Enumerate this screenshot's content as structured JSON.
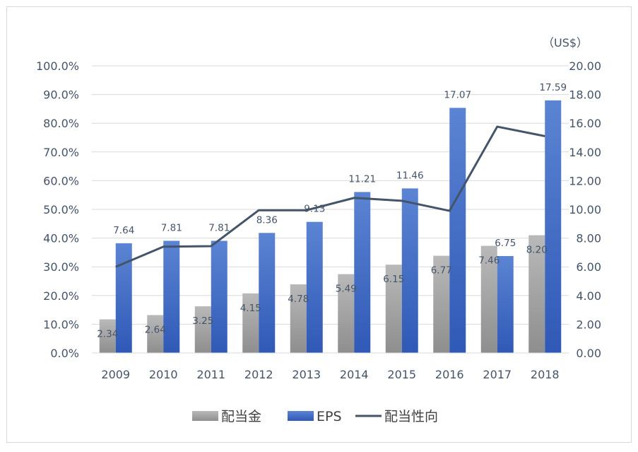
{
  "chart_data": {
    "type": "bar",
    "categories": [
      "2009",
      "2010",
      "2011",
      "2012",
      "2013",
      "2014",
      "2015",
      "2016",
      "2017",
      "2018"
    ],
    "series": [
      {
        "name": "配当金",
        "type": "bar",
        "axis": "right",
        "color": "#a6a6a6",
        "values": [
          2.34,
          2.64,
          3.25,
          4.15,
          4.78,
          5.49,
          6.15,
          6.77,
          7.46,
          8.2
        ],
        "labels": [
          "2.34",
          "2.64",
          "3.25",
          "4.15",
          "4.78",
          "5.49",
          "6.15",
          "6.77",
          "7.46",
          "8.20"
        ]
      },
      {
        "name": "EPS",
        "type": "bar",
        "axis": "right",
        "color": "#4472c4",
        "values": [
          7.64,
          7.81,
          7.81,
          8.36,
          9.13,
          11.21,
          11.46,
          17.07,
          6.75,
          17.59
        ],
        "labels": [
          "7.64",
          "7.81",
          "7.81",
          "8.36",
          "9.13",
          "11.21",
          "11.46",
          "17.07",
          "6.75",
          "17.59"
        ]
      },
      {
        "name": "配当性向",
        "type": "line",
        "axis": "left",
        "color": "#44546a",
        "values": [
          30.0,
          37.0,
          37.2,
          49.7,
          49.7,
          54.0,
          53.0,
          49.5,
          78.8,
          75.5
        ]
      }
    ],
    "y_left": {
      "range": [
        0,
        100
      ],
      "ticks": [
        "0.0%",
        "10.0%",
        "20.0%",
        "30.0%",
        "40.0%",
        "50.0%",
        "60.0%",
        "70.0%",
        "80.0%",
        "90.0%",
        "100.0%"
      ]
    },
    "y_right": {
      "range": [
        0,
        20
      ],
      "unit": "（US$）",
      "ticks": [
        "0.00",
        "2.00",
        "4.00",
        "6.00",
        "8.00",
        "10.00",
        "12.00",
        "14.00",
        "16.00",
        "18.00",
        "20.00"
      ]
    },
    "grid": true,
    "legend_position": "bottom"
  }
}
